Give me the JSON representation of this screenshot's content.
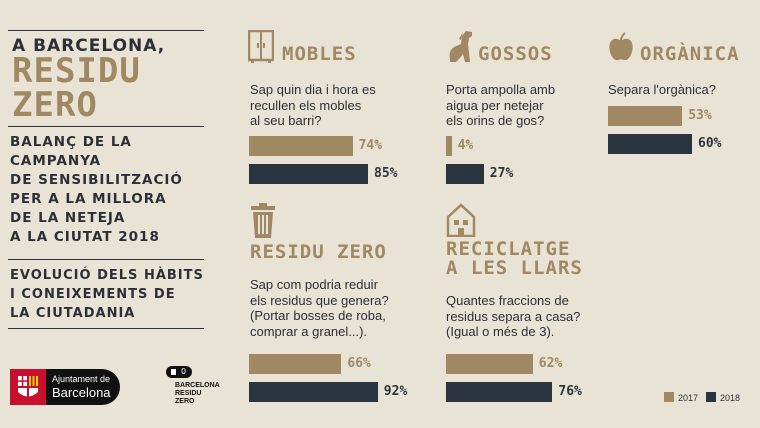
{
  "intro": {
    "line1": "A BARCELONA,",
    "line2": "RESIDU",
    "line3": "ZERO",
    "subtitle": [
      "BALANÇ DE LA",
      "CAMPANYA",
      "DE SENSIBILITZACIÓ",
      "PER A LA MILLORA",
      "DE LA NETEJA",
      "A LA CIUTAT 2018"
    ],
    "evolution": [
      "EVOLUCIÓ DELS HÀBITS",
      "I CONEIXEMENTS DE",
      "LA CIUTADANIA"
    ]
  },
  "logos": {
    "ajuntament_line1": "Ajuntament de",
    "ajuntament_line2": "Barcelona",
    "brz_line1": "BARCELONA",
    "brz_line2": "RESIDU",
    "brz_line3": "ZERO",
    "brz_badge": "0"
  },
  "colors": {
    "y2017": "#a08862",
    "y2018": "#2b3540",
    "background": "#e9e3d5"
  },
  "chart_data": [
    {
      "type": "bar",
      "title": "MOBLES",
      "icon": "wardrobe-icon",
      "question": [
        "Sap quin dia i hora es",
        "recullen els mobles",
        "al seu barri?"
      ],
      "series": [
        {
          "name": "2017",
          "value": 74,
          "label": "74%"
        },
        {
          "name": "2018",
          "value": 85,
          "label": "85%"
        }
      ]
    },
    {
      "type": "bar",
      "title": "GOSSOS",
      "icon": "dog-icon",
      "question": [
        "Porta ampolla amb",
        "aigua per netejar",
        "els orins de gos?"
      ],
      "series": [
        {
          "name": "2017",
          "value": 4,
          "label": "4%"
        },
        {
          "name": "2018",
          "value": 27,
          "label": "27%"
        }
      ]
    },
    {
      "type": "bar",
      "title": "ORGÀNICA",
      "icon": "apple-icon",
      "question": [
        "Separa l'orgànica?"
      ],
      "series": [
        {
          "name": "2017",
          "value": 53,
          "label": "53%"
        },
        {
          "name": "2018",
          "value": 60,
          "label": "60%"
        }
      ]
    },
    {
      "type": "bar",
      "title": "RESIDU ZERO",
      "icon": "trash-bin-icon",
      "question": [
        "Sap com podria reduir",
        "els residus que genera?",
        "(Portar bosses de roba,",
        "comprar a granel...)."
      ],
      "series": [
        {
          "name": "2017",
          "value": 66,
          "label": "66%"
        },
        {
          "name": "2018",
          "value": 92,
          "label": "92%"
        }
      ]
    },
    {
      "type": "bar",
      "title": "RECICLATGE\nA LES LLARS",
      "icon": "house-icon",
      "question": [
        "Quantes fraccions de",
        "residus separa a casa?",
        "(Igual o més de 3)."
      ],
      "series": [
        {
          "name": "2017",
          "value": 62,
          "label": "62%"
        },
        {
          "name": "2018",
          "value": 76,
          "label": "76%"
        }
      ]
    }
  ],
  "legend": {
    "y2017": "2017",
    "y2018": "2018"
  }
}
